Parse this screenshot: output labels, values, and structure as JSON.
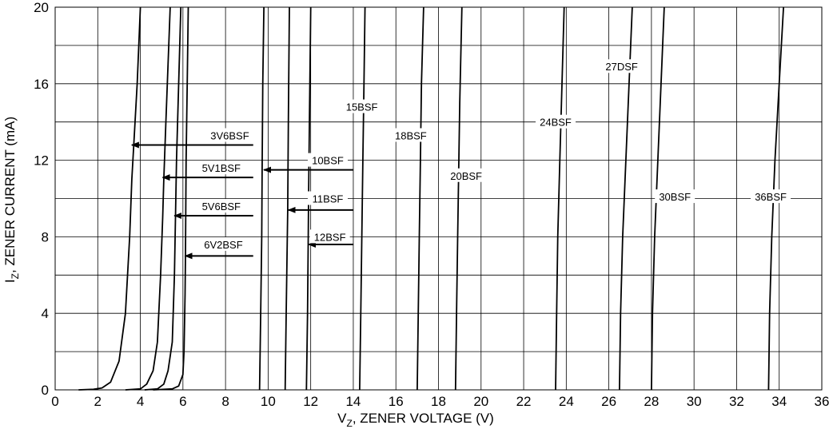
{
  "chart_data": {
    "type": "line",
    "xlabel": "V",
    "xlabel_sub": "Z",
    "xlabel_rest": ", ZENER VOLTAGE (V)",
    "ylabel": "I",
    "ylabel_sub": "Z",
    "ylabel_rest": ", ZENER CURRENT (mA)",
    "xlim": [
      0,
      36
    ],
    "ylim": [
      0,
      20
    ],
    "x_ticks": [
      "0",
      "2",
      "4",
      "6",
      "8",
      "10",
      "12",
      "14",
      "16",
      "18",
      "20",
      "22",
      "24",
      "26",
      "28",
      "30",
      "32",
      "34",
      "36"
    ],
    "y_ticks": [
      "0",
      "4",
      "8",
      "12",
      "16",
      "20"
    ],
    "grid": {
      "x_step": 2,
      "y_step": 2
    },
    "curve_color": "#000000",
    "series": [
      {
        "name": "3V6BSF",
        "points": [
          [
            1.1,
            0
          ],
          [
            1.8,
            0.03
          ],
          [
            2.2,
            0.1
          ],
          [
            2.6,
            0.4
          ],
          [
            3.0,
            1.5
          ],
          [
            3.3,
            4
          ],
          [
            3.5,
            8
          ],
          [
            3.6,
            11
          ],
          [
            3.7,
            13
          ],
          [
            3.85,
            16
          ],
          [
            4.0,
            20
          ]
        ]
      },
      {
        "name": "5V1BSF",
        "points": [
          [
            3.3,
            0
          ],
          [
            4.0,
            0.05
          ],
          [
            4.3,
            0.3
          ],
          [
            4.6,
            1.0
          ],
          [
            4.8,
            2.5
          ],
          [
            4.95,
            6
          ],
          [
            5.05,
            9
          ],
          [
            5.1,
            11
          ],
          [
            5.2,
            14
          ],
          [
            5.3,
            17
          ],
          [
            5.4,
            20
          ]
        ]
      },
      {
        "name": "5V6BSF",
        "points": [
          [
            4.2,
            0
          ],
          [
            4.8,
            0.05
          ],
          [
            5.1,
            0.3
          ],
          [
            5.3,
            1.0
          ],
          [
            5.5,
            2.5
          ],
          [
            5.6,
            6
          ],
          [
            5.65,
            9
          ],
          [
            5.7,
            12
          ],
          [
            5.8,
            16
          ],
          [
            5.9,
            20
          ]
        ]
      },
      {
        "name": "6V2BSF",
        "points": [
          [
            4.6,
            0
          ],
          [
            5.5,
            0.05
          ],
          [
            5.8,
            0.2
          ],
          [
            6.0,
            0.8
          ],
          [
            6.05,
            2
          ],
          [
            6.1,
            5
          ],
          [
            6.12,
            7
          ],
          [
            6.15,
            12
          ],
          [
            6.2,
            16
          ],
          [
            6.25,
            20
          ]
        ]
      },
      {
        "name": "10BSF",
        "points": [
          [
            9.6,
            0
          ],
          [
            9.65,
            4
          ],
          [
            9.7,
            8
          ],
          [
            9.72,
            11.5
          ],
          [
            9.75,
            16
          ],
          [
            9.8,
            20
          ]
        ]
      },
      {
        "name": "11BSF",
        "points": [
          [
            10.8,
            0
          ],
          [
            10.85,
            4
          ],
          [
            10.9,
            8
          ],
          [
            10.92,
            9.4
          ],
          [
            10.95,
            14
          ],
          [
            11.0,
            20
          ]
        ]
      },
      {
        "name": "12BSF",
        "points": [
          [
            11.8,
            0
          ],
          [
            11.85,
            4
          ],
          [
            11.88,
            7.6
          ],
          [
            11.9,
            10
          ],
          [
            11.95,
            15
          ],
          [
            12.0,
            20
          ]
        ]
      },
      {
        "name": "15BSF",
        "points": [
          [
            14.3,
            0
          ],
          [
            14.35,
            4
          ],
          [
            14.4,
            8
          ],
          [
            14.45,
            12
          ],
          [
            14.5,
            16
          ],
          [
            14.55,
            20
          ]
        ]
      },
      {
        "name": "18BSF",
        "points": [
          [
            17.0,
            0
          ],
          [
            17.05,
            4
          ],
          [
            17.1,
            8
          ],
          [
            17.15,
            12
          ],
          [
            17.2,
            16
          ],
          [
            17.3,
            20
          ]
        ]
      },
      {
        "name": "20BSF",
        "points": [
          [
            18.8,
            0
          ],
          [
            18.85,
            4
          ],
          [
            18.9,
            8
          ],
          [
            18.95,
            11.5
          ],
          [
            19.0,
            15
          ],
          [
            19.1,
            20
          ]
        ]
      },
      {
        "name": "24BSF",
        "points": [
          [
            23.5,
            0
          ],
          [
            23.55,
            4
          ],
          [
            23.6,
            8
          ],
          [
            23.7,
            12
          ],
          [
            23.8,
            16
          ],
          [
            23.9,
            20
          ]
        ]
      },
      {
        "name": "27DSF",
        "points": [
          [
            26.5,
            0
          ],
          [
            26.55,
            4
          ],
          [
            26.65,
            8
          ],
          [
            26.8,
            12
          ],
          [
            26.95,
            16
          ],
          [
            27.1,
            20
          ]
        ]
      },
      {
        "name": "30BSF",
        "points": [
          [
            28.0,
            0
          ],
          [
            28.05,
            4
          ],
          [
            28.15,
            8
          ],
          [
            28.3,
            12
          ],
          [
            28.45,
            16
          ],
          [
            28.6,
            20
          ]
        ]
      },
      {
        "name": "36BSF",
        "points": [
          [
            33.5,
            0
          ],
          [
            33.55,
            4
          ],
          [
            33.65,
            8
          ],
          [
            33.8,
            12
          ],
          [
            34.0,
            16
          ],
          [
            34.2,
            20
          ]
        ]
      }
    ],
    "annotations": [
      {
        "label": "3V6BSF",
        "label_at": [
          8.2,
          13.3
        ],
        "arrow_from": [
          9.3,
          12.8
        ],
        "arrow_to": [
          3.6,
          12.8
        ]
      },
      {
        "label": "5V1BSF",
        "label_at": [
          7.8,
          11.6
        ],
        "arrow_from": [
          9.3,
          11.1
        ],
        "arrow_to": [
          5.05,
          11.1
        ]
      },
      {
        "label": "5V6BSF",
        "label_at": [
          7.8,
          9.6
        ],
        "arrow_from": [
          9.3,
          9.1
        ],
        "arrow_to": [
          5.6,
          9.1
        ]
      },
      {
        "label": "6V2BSF",
        "label_at": [
          7.9,
          7.6
        ],
        "arrow_from": [
          9.3,
          7.0
        ],
        "arrow_to": [
          6.1,
          7.0
        ]
      },
      {
        "label": "10BSF",
        "label_at": [
          12.8,
          12.0
        ],
        "arrow_from": [
          14.0,
          11.5
        ],
        "arrow_to": [
          9.8,
          11.5
        ]
      },
      {
        "label": "11BSF",
        "label_at": [
          12.8,
          10.0
        ],
        "arrow_from": [
          14.0,
          9.4
        ],
        "arrow_to": [
          10.95,
          9.4
        ]
      },
      {
        "label": "12BSF",
        "label_at": [
          12.9,
          8.0
        ],
        "arrow_from": [
          14.0,
          7.6
        ],
        "arrow_to": [
          11.9,
          7.6
        ]
      },
      {
        "label": "15BSF",
        "label_at": [
          14.4,
          14.8
        ]
      },
      {
        "label": "18BSF",
        "label_at": [
          16.7,
          13.3
        ]
      },
      {
        "label": "20BSF",
        "label_at": [
          19.3,
          11.2
        ]
      },
      {
        "label": "24BSF",
        "label_at": [
          23.5,
          14.0
        ]
      },
      {
        "label": "27DSF",
        "label_at": [
          26.6,
          16.9
        ]
      },
      {
        "label": "30BSF",
        "label_at": [
          29.1,
          10.1
        ]
      },
      {
        "label": "36BSF",
        "label_at": [
          33.6,
          10.1
        ]
      }
    ]
  }
}
